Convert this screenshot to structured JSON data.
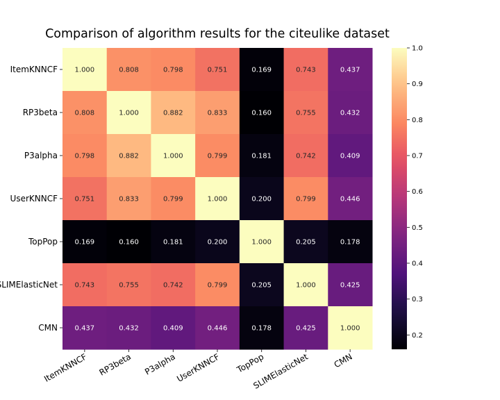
{
  "chart_data": {
    "type": "heatmap",
    "title": "Comparison of algorithm results for the citeulike dataset",
    "xlabel": "",
    "ylabel": "",
    "rows": [
      "ItemKNNCF",
      "RP3beta",
      "P3alpha",
      "UserKNNCF",
      "TopPop",
      "SLIMElasticNet",
      "CMN"
    ],
    "columns": [
      "ItemKNNCF",
      "RP3beta",
      "P3alpha",
      "UserKNNCF",
      "TopPop",
      "SLIMElasticNet",
      "CMN"
    ],
    "values": [
      [
        1.0,
        0.808,
        0.798,
        0.751,
        0.169,
        0.743,
        0.437
      ],
      [
        0.808,
        1.0,
        0.882,
        0.833,
        0.16,
        0.755,
        0.432
      ],
      [
        0.798,
        0.882,
        1.0,
        0.799,
        0.181,
        0.742,
        0.409
      ],
      [
        0.751,
        0.833,
        0.799,
        1.0,
        0.2,
        0.799,
        0.446
      ],
      [
        0.169,
        0.16,
        0.181,
        0.2,
        1.0,
        0.205,
        0.178
      ],
      [
        0.743,
        0.755,
        0.742,
        0.799,
        0.205,
        1.0,
        0.425
      ],
      [
        0.437,
        0.432,
        0.409,
        0.446,
        0.178,
        0.425,
        1.0
      ]
    ],
    "value_format": "3 decimals",
    "colormap": "magma",
    "colorbar": {
      "min": 0.16,
      "max": 1.0,
      "ticks": [
        0.2,
        0.3,
        0.4,
        0.5,
        0.6,
        0.7,
        0.8,
        0.9,
        1.0
      ],
      "tick_labels": [
        "0.2",
        "0.3",
        "0.4",
        "0.5",
        "0.6",
        "0.7",
        "0.8",
        "0.9",
        "1.0"
      ],
      "placement": "right"
    },
    "grid": false
  }
}
